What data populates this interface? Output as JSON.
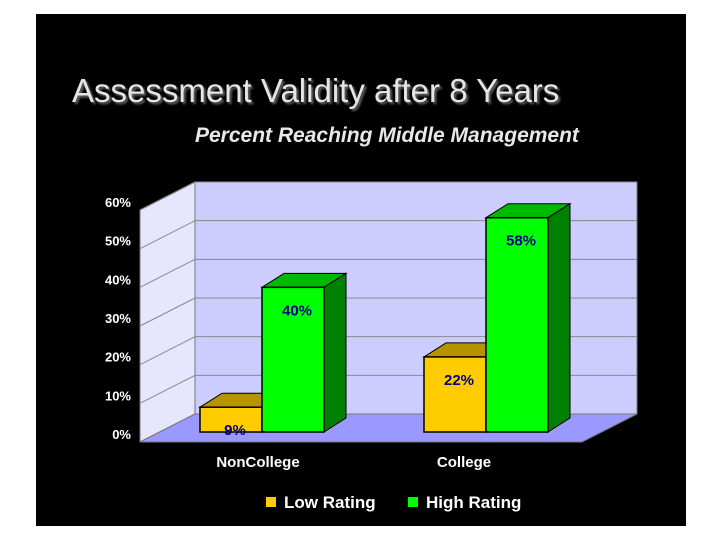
{
  "chart_data": {
    "type": "bar",
    "title": "Assessment Validity after 8 Years",
    "subtitle": "Percent Reaching Middle Management",
    "categories": [
      "NonCollege",
      "College"
    ],
    "series": [
      {
        "name": "Low Rating",
        "values": [
          9,
          22
        ],
        "labels": [
          "9%",
          "22%"
        ],
        "color": "#ffcc00"
      },
      {
        "name": "High Rating",
        "values": [
          40,
          58
        ],
        "labels": [
          "40%",
          "58%"
        ],
        "color": "#00ff00"
      }
    ],
    "ylim": [
      0,
      60
    ],
    "yticks": [
      {
        "value": 0,
        "label": "0%"
      },
      {
        "value": 10,
        "label": "10%"
      },
      {
        "value": 20,
        "label": "20%"
      },
      {
        "value": 30,
        "label": "30%"
      },
      {
        "value": 40,
        "label": "40%"
      },
      {
        "value": 50,
        "label": "50%"
      },
      {
        "value": 60,
        "label": "60%"
      }
    ],
    "grid": true,
    "legend_position": "bottom",
    "colors": {
      "background": "#000000",
      "wall": "#ccccff",
      "floor": "#9999ff",
      "side_wall": "#e6e6ff",
      "text": "#ffffff"
    }
  }
}
